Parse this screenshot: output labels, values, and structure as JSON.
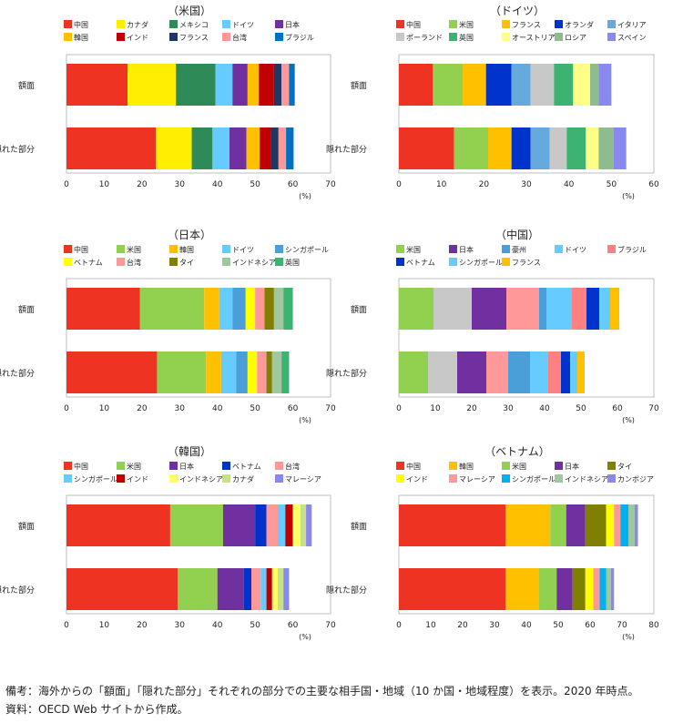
{
  "chart_data": [
    {
      "type": "bar",
      "title": "（米国）",
      "stacked": true,
      "orientation": "horizontal",
      "categories": [
        "額面",
        "隠れた部分"
      ],
      "xlim": [
        0,
        70
      ],
      "xticks": [
        0,
        10,
        20,
        30,
        40,
        50,
        60,
        70
      ],
      "unit": "(%)",
      "series": [
        {
          "name": "中国",
          "color": "#ee3322",
          "values": [
            16.2,
            23.7
          ]
        },
        {
          "name": "カナダ",
          "color": "#ffee00",
          "values": [
            12.8,
            9.5
          ]
        },
        {
          "name": "メキシコ",
          "color": "#2e8b57",
          "values": [
            10.5,
            5.5
          ]
        },
        {
          "name": "ドイツ",
          "color": "#66ccff",
          "values": [
            4.5,
            4.5
          ]
        },
        {
          "name": "日本",
          "color": "#7030a0",
          "values": [
            4.0,
            4.5
          ]
        },
        {
          "name": "韓国",
          "color": "#ffc000",
          "values": [
            3.0,
            3.5
          ]
        },
        {
          "name": "インド",
          "color": "#c00000",
          "values": [
            4.0,
            3.0
          ]
        },
        {
          "name": "フランス",
          "color": "#1f3864",
          "values": [
            2.0,
            2.0
          ]
        },
        {
          "name": "台湾",
          "color": "#ff9999",
          "values": [
            2.0,
            2.0
          ]
        },
        {
          "name": "ブラジル",
          "color": "#0070c0",
          "values": [
            1.5,
            2.0
          ]
        }
      ]
    },
    {
      "type": "bar",
      "title": "（ドイツ）",
      "stacked": true,
      "orientation": "horizontal",
      "categories": [
        "額面",
        "隠れた部分"
      ],
      "xlim": [
        0,
        60
      ],
      "xticks": [
        0,
        10,
        20,
        30,
        40,
        50,
        60
      ],
      "unit": "(%)",
      "series": [
        {
          "name": "中国",
          "color": "#ee3322",
          "values": [
            8.0,
            13.0
          ]
        },
        {
          "name": "米国",
          "color": "#92d050",
          "values": [
            7.0,
            8.0
          ]
        },
        {
          "name": "フランス",
          "color": "#ffc000",
          "values": [
            5.5,
            5.5
          ]
        },
        {
          "name": "オランダ",
          "color": "#0033cc",
          "values": [
            6.0,
            4.5
          ]
        },
        {
          "name": "イタリア",
          "color": "#66aadd",
          "values": [
            4.5,
            4.5
          ]
        },
        {
          "name": "ポーランド",
          "color": "#c8c8c8",
          "values": [
            5.5,
            4.0
          ]
        },
        {
          "name": "英国",
          "color": "#3cb371",
          "values": [
            4.5,
            4.5
          ]
        },
        {
          "name": "オーストリア",
          "color": "#ffff88",
          "values": [
            4.0,
            3.0
          ]
        },
        {
          "name": "ロシア",
          "color": "#8fbc8f",
          "values": [
            2.0,
            3.5
          ]
        },
        {
          "name": "スペイン",
          "color": "#8888ee",
          "values": [
            3.0,
            3.0
          ]
        }
      ]
    },
    {
      "type": "bar",
      "title": "（日本）",
      "stacked": true,
      "orientation": "horizontal",
      "categories": [
        "額面",
        "隠れた部分"
      ],
      "xlim": [
        0,
        70
      ],
      "xticks": [
        0,
        10,
        20,
        30,
        40,
        50,
        60,
        70
      ],
      "unit": "(%)",
      "series": [
        {
          "name": "中国",
          "color": "#ee3322",
          "values": [
            19.5,
            24.0
          ]
        },
        {
          "name": "米国",
          "color": "#92d050",
          "values": [
            17.0,
            13.0
          ]
        },
        {
          "name": "韓国",
          "color": "#ffc000",
          "values": [
            4.0,
            4.0
          ]
        },
        {
          "name": "ドイツ",
          "color": "#66ccff",
          "values": [
            3.5,
            4.0
          ]
        },
        {
          "name": "シンガポール",
          "color": "#4a9fd8",
          "values": [
            3.5,
            3.0
          ]
        },
        {
          "name": "ベトナム",
          "color": "#ffff00",
          "values": [
            2.5,
            2.5
          ]
        },
        {
          "name": "台湾",
          "color": "#ff9999",
          "values": [
            2.5,
            2.5
          ]
        },
        {
          "name": "タイ",
          "color": "#808000",
          "values": [
            2.5,
            1.5
          ]
        },
        {
          "name": "インドネシア",
          "color": "#a0c8a0",
          "values": [
            2.5,
            2.5
          ]
        },
        {
          "name": "英国",
          "color": "#3cb371",
          "values": [
            2.5,
            2.0
          ]
        }
      ]
    },
    {
      "type": "bar",
      "title": "（中国）",
      "stacked": true,
      "orientation": "horizontal",
      "categories": [
        "額面",
        "隠れた部分"
      ],
      "xlim": [
        0,
        70
      ],
      "xticks": [
        0,
        10,
        20,
        30,
        40,
        50,
        60,
        70
      ],
      "unit": "(%)",
      "series": [
        {
          "name": "米国",
          "color": "#92d050",
          "values": [
            9.5,
            8.0
          ]
        },
        {
          "name": "日本",
          "color": "#7030a0",
          "values": [
            9.5,
            8.0
          ]
        },
        {
          "name": "豪州",
          "color": "#4a9fd8",
          "values": [
            2.0,
            6.0
          ]
        },
        {
          "name": "ドイツ",
          "color": "#66ccff",
          "values": [
            7.0,
            5.0
          ]
        },
        {
          "name": "ブラジル",
          "color": "#ff8080",
          "values": [
            4.0,
            3.5
          ]
        },
        {
          "name": "ベトナム",
          "color": "#0033cc",
          "values": [
            3.5,
            2.5
          ]
        },
        {
          "name": "シンガポール",
          "color": "#66ccff",
          "values": [
            3.0,
            2.0
          ]
        },
        {
          "name": "フランス",
          "color": "#ffc000",
          "values": [
            2.5,
            2.0
          ]
        }
      ],
      "extra_segments": [
        {
          "color": "#c8c8c8",
          "values": [
            10.5,
            8.0
          ],
          "after": "米国"
        },
        {
          "color": "#ff9999",
          "values": [
            9.0,
            6.0
          ],
          "after": "日本"
        }
      ]
    },
    {
      "type": "bar",
      "title": "（韓国）",
      "stacked": true,
      "orientation": "horizontal",
      "categories": [
        "額面",
        "隠れた部分"
      ],
      "xlim": [
        0,
        70
      ],
      "xticks": [
        0,
        10,
        20,
        30,
        40,
        50,
        60,
        70
      ],
      "unit": "(%)",
      "series": [
        {
          "name": "中国",
          "color": "#ee3322",
          "values": [
            27.5,
            29.5
          ]
        },
        {
          "name": "米国",
          "color": "#92d050",
          "values": [
            14.0,
            10.5
          ]
        },
        {
          "name": "日本",
          "color": "#7030a0",
          "values": [
            8.5,
            7.0
          ]
        },
        {
          "name": "ベトナム",
          "color": "#0033cc",
          "values": [
            3.0,
            2.0
          ]
        },
        {
          "name": "台湾",
          "color": "#ff9999",
          "values": [
            3.0,
            2.5
          ]
        },
        {
          "name": "シンガポール",
          "color": "#66ccff",
          "values": [
            2.0,
            1.5
          ]
        },
        {
          "name": "インド",
          "color": "#c00000",
          "values": [
            2.0,
            1.5
          ]
        },
        {
          "name": "インドネシア",
          "color": "#ffff66",
          "values": [
            2.0,
            1.5
          ]
        },
        {
          "name": "カナダ",
          "color": "#c8e08a",
          "values": [
            1.5,
            1.5
          ]
        },
        {
          "name": "マレーシア",
          "color": "#8888ee",
          "values": [
            1.5,
            1.5
          ]
        }
      ]
    },
    {
      "type": "bar",
      "title": "（ベトナム）",
      "stacked": true,
      "orientation": "horizontal",
      "categories": [
        "額面",
        "隠れた部分"
      ],
      "xlim": [
        0,
        80
      ],
      "xticks": [
        0,
        10,
        20,
        30,
        40,
        50,
        60,
        70,
        80
      ],
      "unit": "(%)",
      "series": [
        {
          "name": "中国",
          "color": "#ee3322",
          "values": [
            33.5,
            33.5
          ]
        },
        {
          "name": "韓国",
          "color": "#ffc000",
          "values": [
            14.0,
            10.5
          ]
        },
        {
          "name": "米国",
          "color": "#92d050",
          "values": [
            5.0,
            5.5
          ]
        },
        {
          "name": "日本",
          "color": "#7030a0",
          "values": [
            6.0,
            5.0
          ]
        },
        {
          "name": "タイ",
          "color": "#808000",
          "values": [
            6.5,
            4.0
          ]
        },
        {
          "name": "インド",
          "color": "#ffff00",
          "values": [
            2.5,
            2.5
          ]
        },
        {
          "name": "マレーシア",
          "color": "#ff9999",
          "values": [
            2.0,
            2.0
          ]
        },
        {
          "name": "シンガポール",
          "color": "#00b0f0",
          "values": [
            2.5,
            2.0
          ]
        },
        {
          "name": "インドネシア",
          "color": "#a0c8a0",
          "values": [
            2.0,
            1.5
          ]
        },
        {
          "name": "カンボジア",
          "color": "#8888ee",
          "values": [
            1.0,
            1.0
          ]
        }
      ]
    }
  ],
  "footnote": {
    "note1": "備考：海外からの「額面」「隠れた部分」それぞれの部分での主要な相手国・地域（10 か国・地域程度）を表示。2020 年時点。",
    "note2": "資料：OECD Web サイトから作成。"
  }
}
